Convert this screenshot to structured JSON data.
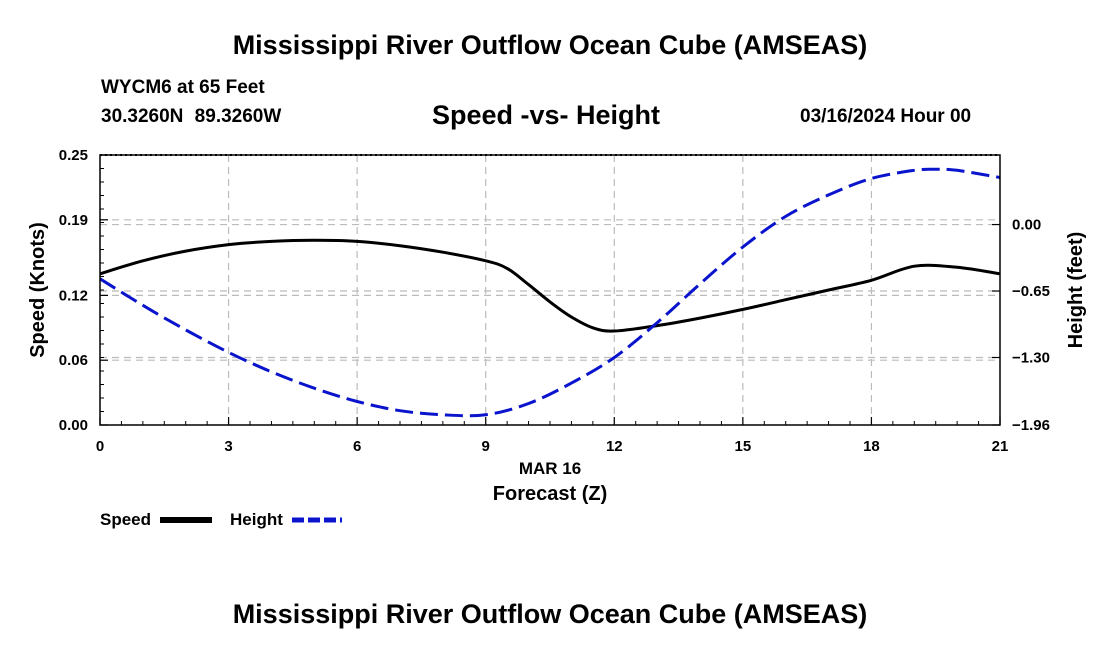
{
  "header": {
    "title": "Mississippi River Outflow Ocean Cube (AMSEAS)",
    "station": "WYCM6 at 65 Feet",
    "coordinates": "30.3260N  89.3260W",
    "subtitle": "Speed -vs- Height",
    "datetime": "03/16/2024 Hour 00"
  },
  "footer": {
    "title": "Mississippi River Outflow Ocean Cube (AMSEAS)"
  },
  "legend": {
    "speed_label": "Speed",
    "height_label": "Height"
  },
  "chart_data": {
    "type": "line",
    "title": "Speed -vs- Height",
    "xlabel": "Forecast (Z)",
    "xlabel_date": "MAR 16",
    "ylabel": "Speed (Knots)",
    "y2label": "Height (feet)",
    "xlim": [
      0,
      21
    ],
    "ylim": [
      0,
      0.25
    ],
    "y2lim": [
      -1.96,
      0.68
    ],
    "x_ticks": [
      0,
      3,
      6,
      9,
      12,
      15,
      18,
      21
    ],
    "x_tick_labels": [
      "0",
      "3",
      "6",
      "9",
      "12",
      "15",
      "18",
      "21"
    ],
    "y_ticks": [
      0,
      0.06,
      0.12,
      0.19,
      0.25
    ],
    "y_tick_labels": [
      "0.00",
      "0.06",
      "0.12",
      "0.19",
      "0.25"
    ],
    "y2_ticks": [
      -1.96,
      -1.3,
      -0.65,
      0.0
    ],
    "y2_tick_labels": [
      "−1.96",
      "−1.30",
      "−0.65",
      "0.00"
    ],
    "grid": true,
    "legend_position": "bottom-left",
    "series": [
      {
        "name": "Speed",
        "axis": "left",
        "color": "#000000",
        "dash": "solid",
        "x": [
          0,
          1,
          2,
          3,
          4,
          5,
          6,
          7,
          8,
          9,
          9.5,
          10,
          10.5,
          11,
          11.5,
          12,
          13,
          14,
          15,
          16,
          17,
          18,
          19,
          20,
          21
        ],
        "values": [
          0.14,
          0.152,
          0.161,
          0.167,
          0.17,
          0.171,
          0.17,
          0.166,
          0.16,
          0.152,
          0.145,
          0.13,
          0.114,
          0.1,
          0.09,
          0.087,
          0.092,
          0.099,
          0.107,
          0.116,
          0.125,
          0.134,
          0.147,
          0.146,
          0.14
        ]
      },
      {
        "name": "Height",
        "axis": "right",
        "color": "#0a14cc",
        "dash": "dashed",
        "x": [
          0,
          1,
          2,
          3,
          4,
          5,
          6,
          7,
          8,
          9,
          10,
          11,
          12,
          13,
          14,
          15,
          16,
          17,
          18,
          19,
          19.5,
          20,
          21
        ],
        "values": [
          -0.53,
          -0.79,
          -1.03,
          -1.25,
          -1.44,
          -1.6,
          -1.73,
          -1.82,
          -1.86,
          -1.86,
          -1.75,
          -1.55,
          -1.3,
          -0.96,
          -0.58,
          -0.22,
          0.08,
          0.29,
          0.45,
          0.53,
          0.54,
          0.53,
          0.46
        ]
      }
    ]
  }
}
